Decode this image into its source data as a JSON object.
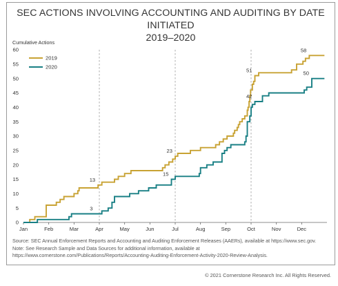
{
  "title_line1": "SEC ACTIONS INVOLVING ACCOUNTING AND AUDITING BY DATE INITIATED",
  "title_line2": "2019–2020",
  "source_lines": [
    "Source: SEC Annual Enforcement Reports and Accounting and Auditing Enforcement Releases (AAERs), available at https://www.sec.gov.",
    "Note: See Research Sample and Data Sources for additional information, available at",
    "https://www.cornerstone.com/Publications/Reports/Accounting-Auditing-Enforcement-Activity-2020-Review-Analysis."
  ],
  "copyright": "© 2021 Cornerstone Research Inc. All Rights Reserved.",
  "chart_data": {
    "type": "line",
    "step": true,
    "ylabel": "Cumulative Actions",
    "xlabel": "",
    "ylim": [
      0,
      60
    ],
    "yticks": [
      0,
      5,
      10,
      15,
      20,
      25,
      30,
      35,
      40,
      45,
      50,
      55,
      60
    ],
    "xlim": [
      0,
      12
    ],
    "month_labels": [
      "Jan",
      "Feb",
      "Mar",
      "Apr",
      "May",
      "Jun",
      "Jul",
      "Aug",
      "Sep",
      "Oct",
      "Nov",
      "Dec"
    ],
    "quarter_lines_month": [
      3,
      6,
      9
    ],
    "legend": "top-left",
    "series": [
      {
        "name": "2019",
        "color": "#c8a233",
        "points": [
          [
            0,
            0
          ],
          [
            0.25,
            1
          ],
          [
            0.45,
            2
          ],
          [
            0.9,
            6
          ],
          [
            1.3,
            7
          ],
          [
            1.45,
            8
          ],
          [
            1.6,
            9
          ],
          [
            2.0,
            10
          ],
          [
            2.15,
            11
          ],
          [
            2.2,
            12
          ],
          [
            2.95,
            13
          ],
          [
            3.1,
            14
          ],
          [
            3.6,
            15
          ],
          [
            3.75,
            16
          ],
          [
            4.0,
            17
          ],
          [
            4.25,
            18
          ],
          [
            5.5,
            19
          ],
          [
            5.6,
            20
          ],
          [
            5.75,
            21
          ],
          [
            5.9,
            22
          ],
          [
            6.0,
            23
          ],
          [
            6.1,
            24
          ],
          [
            6.6,
            25
          ],
          [
            7.0,
            26
          ],
          [
            7.6,
            27
          ],
          [
            7.75,
            28
          ],
          [
            7.9,
            29
          ],
          [
            8.05,
            30
          ],
          [
            8.3,
            31
          ],
          [
            8.35,
            32
          ],
          [
            8.45,
            33
          ],
          [
            8.5,
            34
          ],
          [
            8.55,
            35
          ],
          [
            8.65,
            36
          ],
          [
            8.75,
            37
          ],
          [
            8.85,
            39
          ],
          [
            8.88,
            40
          ],
          [
            8.92,
            42
          ],
          [
            8.95,
            44
          ],
          [
            8.98,
            46
          ],
          [
            9.05,
            48
          ],
          [
            9.1,
            49
          ],
          [
            9.15,
            51
          ],
          [
            9.3,
            52
          ],
          [
            10.6,
            53
          ],
          [
            10.8,
            55
          ],
          [
            11.05,
            56
          ],
          [
            11.15,
            57
          ],
          [
            11.3,
            58
          ],
          [
            11.9,
            58
          ]
        ],
        "end_value": 58
      },
      {
        "name": "2020",
        "color": "#187f84",
        "points": [
          [
            0,
            0
          ],
          [
            0.55,
            1
          ],
          [
            1.8,
            2
          ],
          [
            1.9,
            3
          ],
          [
            3.1,
            4
          ],
          [
            3.35,
            5
          ],
          [
            3.5,
            7
          ],
          [
            3.6,
            9
          ],
          [
            4.2,
            10
          ],
          [
            4.55,
            11
          ],
          [
            4.95,
            12
          ],
          [
            5.25,
            13
          ],
          [
            5.85,
            15
          ],
          [
            6.0,
            16
          ],
          [
            6.95,
            17
          ],
          [
            7.0,
            19
          ],
          [
            7.25,
            20
          ],
          [
            7.5,
            21
          ],
          [
            7.85,
            24
          ],
          [
            7.95,
            25
          ],
          [
            8.05,
            26
          ],
          [
            8.2,
            27
          ],
          [
            8.75,
            28
          ],
          [
            8.8,
            30
          ],
          [
            8.85,
            35
          ],
          [
            8.95,
            37
          ],
          [
            9.0,
            40
          ],
          [
            9.05,
            41
          ],
          [
            9.15,
            42
          ],
          [
            9.45,
            44
          ],
          [
            9.7,
            45
          ],
          [
            11.1,
            46
          ],
          [
            11.2,
            47
          ],
          [
            11.4,
            50
          ],
          [
            11.9,
            50
          ]
        ],
        "end_value": 50
      }
    ],
    "annotations": [
      {
        "text": "13",
        "x": 2.95,
        "y": 13,
        "series": "2019"
      },
      {
        "text": "23",
        "x": 6.0,
        "y": 23,
        "series": "2019"
      },
      {
        "text": "51",
        "x": 9.15,
        "y": 51,
        "series": "2019"
      },
      {
        "text": "58",
        "x": 11.3,
        "y": 58,
        "series": "2019"
      },
      {
        "text": "3",
        "x": 2.85,
        "y": 3,
        "series": "2020"
      },
      {
        "text": "15",
        "x": 5.85,
        "y": 15,
        "series": "2020"
      },
      {
        "text": "42",
        "x": 9.15,
        "y": 42,
        "series": "2020"
      },
      {
        "text": "50",
        "x": 11.4,
        "y": 50,
        "series": "2020"
      }
    ]
  }
}
